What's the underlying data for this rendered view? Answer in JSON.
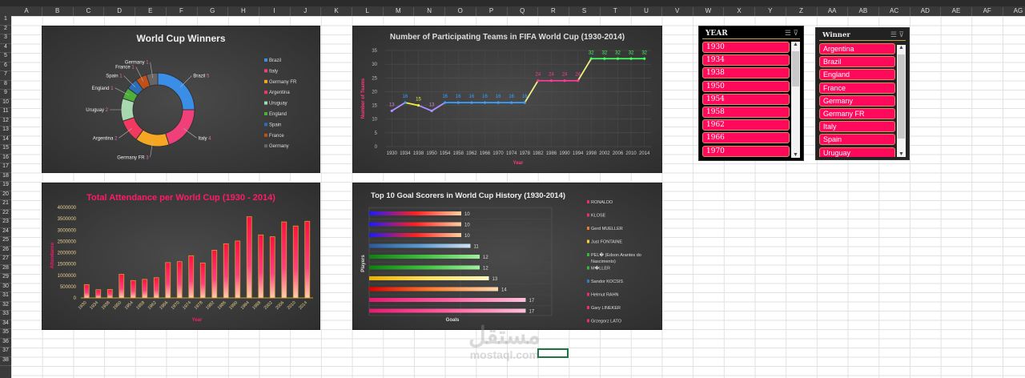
{
  "sheet": {
    "columns": [
      "A",
      "B",
      "C",
      "D",
      "E",
      "F",
      "G",
      "H",
      "I",
      "J",
      "K",
      "L",
      "M",
      "N",
      "O",
      "P",
      "Q",
      "R",
      "S",
      "T",
      "U",
      "V",
      "W",
      "X",
      "Y",
      "Z",
      "AA",
      "AB",
      "AC",
      "AD",
      "AE",
      "AF",
      "AG"
    ],
    "rows": 38,
    "selected_cell": "R37"
  },
  "chart_data": [
    {
      "type": "pie",
      "title": "World Cup Winners",
      "categories": [
        "Brazil",
        "Italy",
        "Germany FR",
        "Argentina",
        "Uruguay",
        "England",
        "Spain",
        "France",
        "Germany"
      ],
      "values": [
        5,
        4,
        3,
        2,
        2,
        1,
        1,
        1,
        1
      ],
      "colors": [
        "#3a8ee6",
        "#f0407a",
        "#f5a623",
        "#f03a60",
        "#a8d8b0",
        "#4caf3a",
        "#2c6fb8",
        "#c0501a",
        "#666666"
      ],
      "legend": "right",
      "donut": true
    },
    {
      "type": "line",
      "title": "Number of Participating Teams in FIFA World Cup (1930-2014)",
      "xlabel": "Year",
      "ylabel": "Number of Teams",
      "ylim": [
        0,
        35
      ],
      "yticks": [
        0,
        5,
        10,
        15,
        20,
        25,
        30,
        35
      ],
      "x": [
        "1930",
        "1934",
        "1938",
        "1950",
        "1954",
        "1958",
        "1962",
        "1966",
        "1970",
        "1974",
        "1978",
        "1982",
        "1986",
        "1990",
        "1994",
        "1998",
        "2002",
        "2006",
        "2010",
        "2014"
      ],
      "values": [
        13,
        16,
        15,
        13,
        16,
        16,
        16,
        16,
        16,
        16,
        16,
        24,
        24,
        24,
        24,
        32,
        32,
        32,
        32,
        32
      ],
      "grid": true
    },
    {
      "type": "bar",
      "title": "Total Attendance per World Cup (1930 - 2014)",
      "xlabel": "Year",
      "ylabel": "Attendance",
      "ylim": [
        0,
        4000000
      ],
      "yticks": [
        "0",
        "500000",
        "1000000",
        "1500000",
        "2000000",
        "2500000",
        "3000000",
        "3500000",
        "4000000"
      ],
      "categories": [
        "1930",
        "1934",
        "1938",
        "1950",
        "1954",
        "1958",
        "1962",
        "1966",
        "1970",
        "1974",
        "1978",
        "1982",
        "1986",
        "1990",
        "1994",
        "1998",
        "2002",
        "2006",
        "2010",
        "2014"
      ],
      "values": [
        590549,
        363000,
        375700,
        1045246,
        768607,
        819810,
        893172,
        1563135,
        1603975,
        1865753,
        1545791,
        2109723,
        2394031,
        2516215,
        3587538,
        2785100,
        2705197,
        3359439,
        3178856,
        3386810
      ]
    },
    {
      "type": "bar",
      "orientation": "horizontal",
      "title": "Top 10 Goal Scorers in World Cup History (1930-2014)",
      "xlabel": "Goals",
      "ylabel": "Players",
      "values": [
        10,
        10,
        10,
        11,
        12,
        12,
        13,
        14,
        17,
        17
      ],
      "legend": [
        "RONALDO",
        "KLOSE",
        "Gerd MUELLER",
        "Just FONTAINE",
        "PEL� (Edson Arantes do Nascimento)",
        "M�LLER",
        "Sandor KOCSIS",
        "Helmut RAHN",
        "Gary LINEKER",
        "Grzegorz LATO"
      ],
      "legend_colors": [
        "#e8306e",
        "#e8306e",
        "#f07a2a",
        "#f5d03a",
        "#3cb43c",
        "#3cb43c",
        "#3a7ab8",
        "#e8306e",
        "#e8306e",
        "#e8306e"
      ],
      "bar_colors": [
        [
          "#1a1aff",
          "#ff2020",
          "#ffd0a0"
        ],
        [
          "#1a1aff",
          "#ff2020",
          "#ffd0a0"
        ],
        [
          "#1a1aff",
          "#ff2020",
          "#ffd0a0"
        ],
        [
          "#2a5a9a",
          "#5a9ad0",
          "#d0e4f6"
        ],
        [
          "#108010",
          "#40c040",
          "#a0f0a0"
        ],
        [
          "#108010",
          "#40c040",
          "#a0f0a0"
        ],
        [
          "#e8b000",
          "#ffe060",
          "#fff6c0"
        ],
        [
          "#e00000",
          "#ff8030",
          "#ffd8b0"
        ],
        [
          "#e81870",
          "#ff60a0",
          "#ffc0dc"
        ],
        [
          "#e81870",
          "#ff60a0",
          "#ffc0dc"
        ]
      ]
    }
  ],
  "slicers": {
    "year": {
      "title": "YEAR",
      "items": [
        "1930",
        "1934",
        "1938",
        "1950",
        "1954",
        "1958",
        "1962",
        "1966",
        "1970"
      ]
    },
    "winner": {
      "title": "Winner",
      "items": [
        "Argentina",
        "Brazil",
        "England",
        "France",
        "Germany",
        "Germany FR",
        "Italy",
        "Spain",
        "Uruguay"
      ]
    }
  },
  "watermark": {
    "arabic": "مستقل",
    "latin": "mostaql.com"
  }
}
